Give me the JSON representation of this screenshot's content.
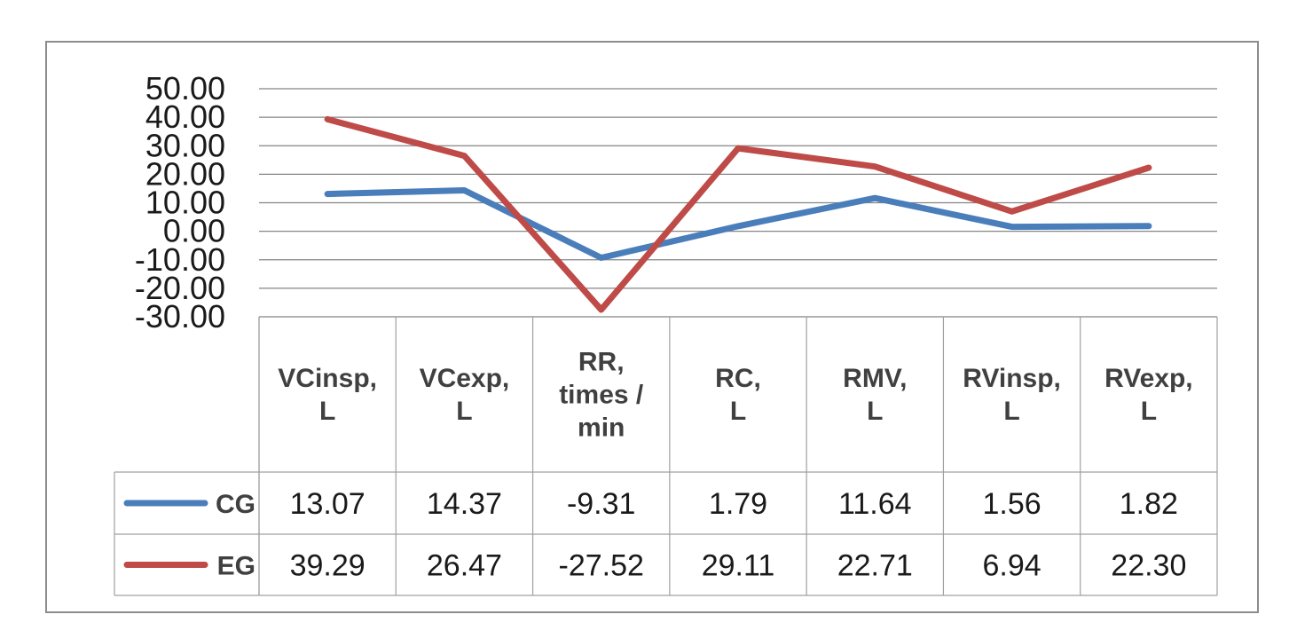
{
  "chart_data": {
    "type": "line",
    "title": "",
    "xlabel": "",
    "ylabel": "",
    "ylim": [
      -30,
      50
    ],
    "y_ticks": [
      "50.00",
      "40.00",
      "30.00",
      "20.00",
      "10.00",
      "0.00",
      "-10.00",
      "-20.00",
      "-30.00"
    ],
    "y_tick_values": [
      50,
      40,
      30,
      20,
      10,
      0,
      -10,
      -20,
      -30
    ],
    "grid": true,
    "legend": "data-table",
    "categories": [
      [
        "VCinsp,",
        "L"
      ],
      [
        "VCexp,",
        "L"
      ],
      [
        "RR,",
        "times /",
        "min"
      ],
      [
        "RC,",
        "L"
      ],
      [
        "RMV,",
        "L"
      ],
      [
        "RVinsp,",
        "L"
      ],
      [
        "RVexp,",
        "L"
      ]
    ],
    "series": [
      {
        "name": "CG",
        "color": "#4a7ebb",
        "values": [
          13.07,
          14.37,
          -9.31,
          1.79,
          11.64,
          1.56,
          1.82
        ],
        "labels": [
          "13.07",
          "14.37",
          "-9.31",
          "1.79",
          "11.64",
          "1.56",
          "1.82"
        ]
      },
      {
        "name": "EG",
        "color": "#be4b48",
        "values": [
          39.29,
          26.47,
          -27.52,
          29.11,
          22.71,
          6.94,
          22.3
        ],
        "labels": [
          "39.29",
          "26.47",
          "-27.52",
          "29.11",
          "22.71",
          "6.94",
          "22.30"
        ]
      }
    ]
  }
}
